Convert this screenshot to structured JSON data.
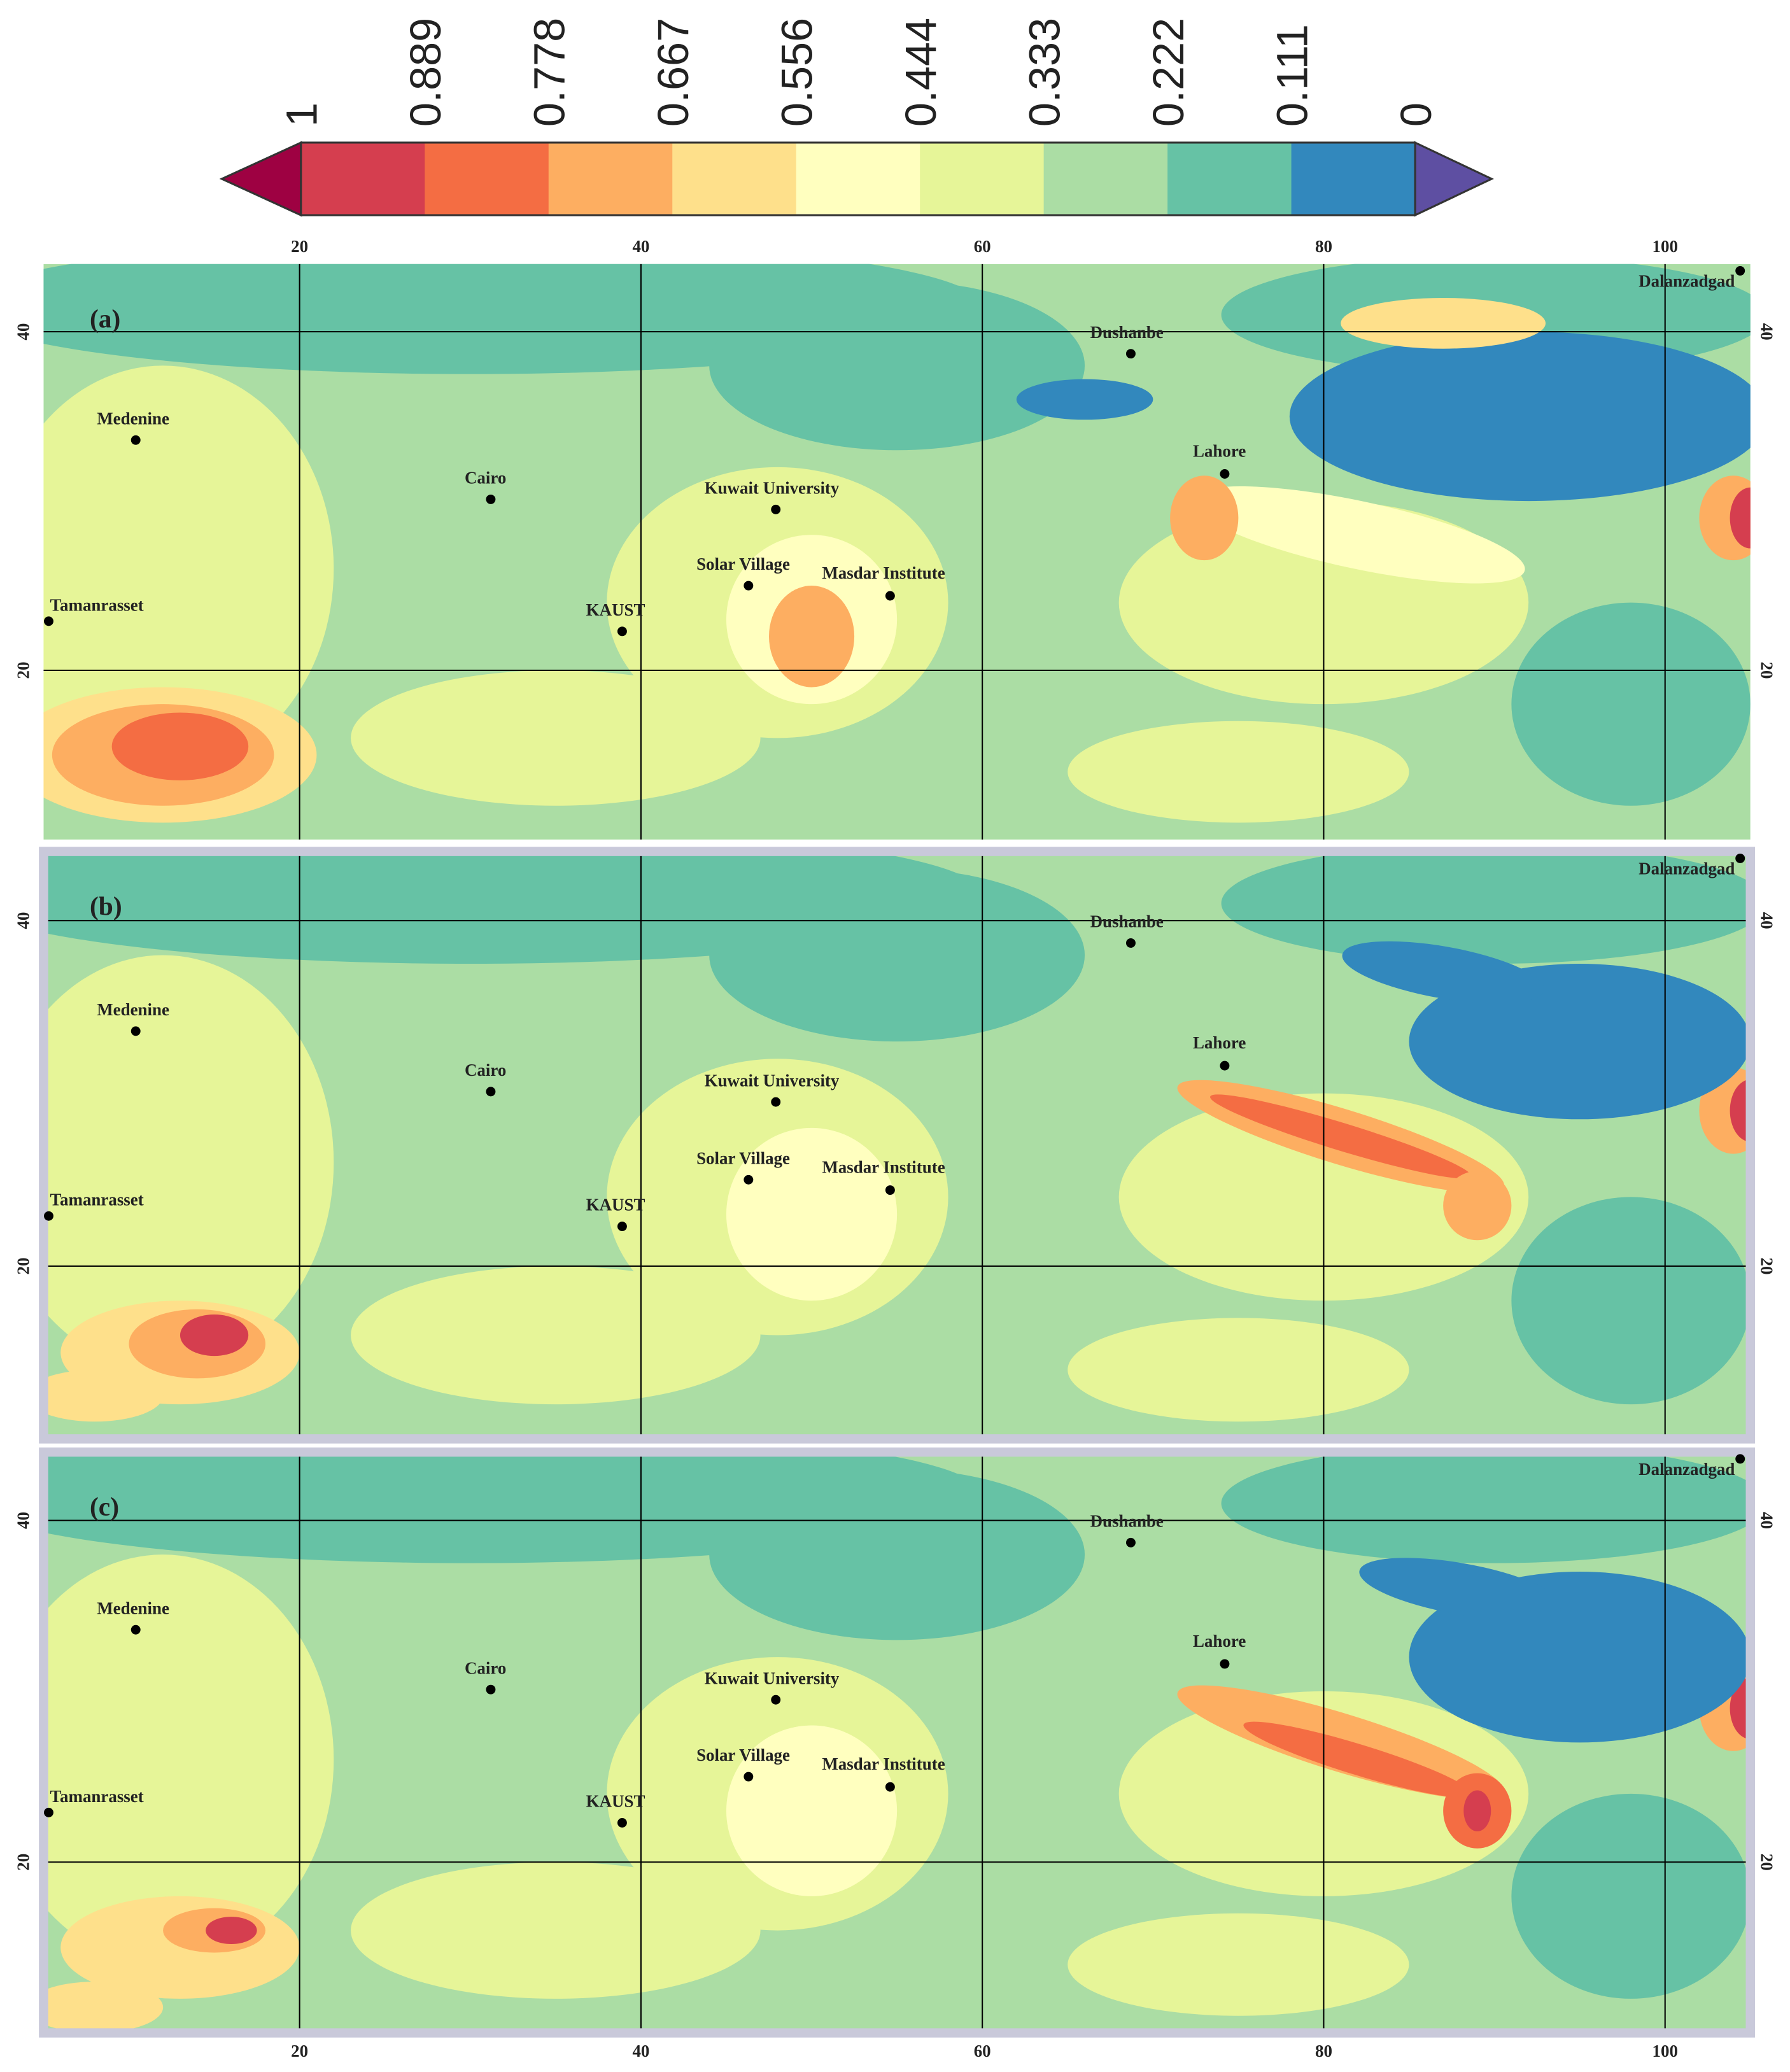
{
  "colorbar": {
    "ticks": [
      1,
      0.889,
      0.778,
      0.667,
      0.556,
      0.444,
      0.333,
      0.222,
      0.111,
      0
    ],
    "colors": [
      "#d53e4f",
      "#f46d43",
      "#fdae61",
      "#fee08b",
      "#ffffbf",
      "#e6f598",
      "#abdda4",
      "#66c2a5",
      "#3288bd"
    ],
    "over_color": "#9e0142",
    "under_color": "#5e4fa2"
  },
  "map": {
    "xlim": [
      5,
      105
    ],
    "ylim": [
      10,
      44
    ],
    "xticks": [
      20,
      40,
      60,
      80,
      100
    ],
    "yticks": [
      20,
      40
    ],
    "grid": true
  },
  "panels": [
    "(a)",
    "(b)",
    "(c)"
  ],
  "stations": [
    "Dalanzadgad",
    "Medenine",
    "Cairo",
    "Kuwait University",
    "Solar Village",
    "Masdar Institute",
    "KAUST",
    "Tamanrasset",
    "Dushanbe",
    "Lahore"
  ]
}
